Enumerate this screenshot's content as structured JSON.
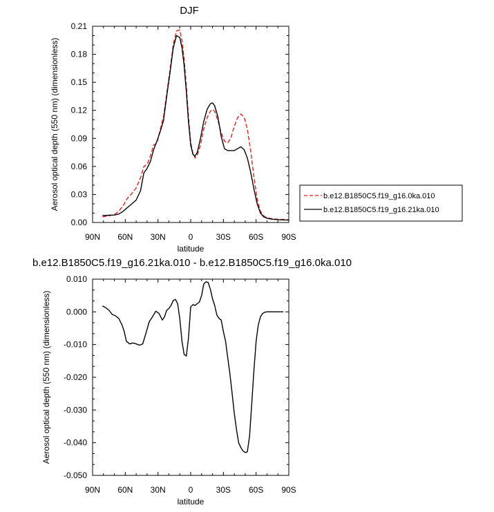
{
  "chart_data": [
    {
      "type": "line",
      "title": "DJF",
      "xlabel": "latitude",
      "ylabel": "Aerosol optical depth (550 nm) (dimensionless)",
      "xlim": [
        90,
        -90
      ],
      "ylim": [
        0,
        0.21
      ],
      "x_ticks": [
        "90N",
        "60N",
        "30N",
        "0",
        "30S",
        "60S",
        "90S"
      ],
      "y_ticks": [
        "0.00",
        "0.03",
        "0.06",
        "0.09",
        "0.12",
        "0.15",
        "0.18",
        "0.21"
      ],
      "legend_position": "right",
      "series": [
        {
          "name": "b.e12.B1850C5.f19_g16.0ka.010",
          "color": "#e02020",
          "dash": "dashed",
          "x": [
            81,
            75,
            70,
            66,
            62,
            58,
            54,
            50,
            46,
            43,
            40,
            37,
            34,
            31,
            28,
            25,
            22,
            19,
            16,
            13,
            10,
            8,
            6,
            4,
            2,
            0,
            -2,
            -4,
            -6,
            -9,
            -12,
            -15,
            -18,
            -20,
            -22,
            -25,
            -28,
            -31,
            -34,
            -37,
            -40,
            -43,
            -46,
            -49,
            -52,
            -55,
            -58,
            -61,
            -64,
            -67,
            -70,
            -75,
            -80,
            -90
          ],
          "y": [
            0.006,
            0.0072,
            0.0085,
            0.012,
            0.018,
            0.026,
            0.031,
            0.037,
            0.048,
            0.06,
            0.062,
            0.071,
            0.083,
            0.085,
            0.099,
            0.113,
            0.138,
            0.163,
            0.191,
            0.205,
            0.206,
            0.195,
            0.175,
            0.146,
            0.113,
            0.086,
            0.074,
            0.069,
            0.072,
            0.083,
            0.1,
            0.112,
            0.119,
            0.121,
            0.119,
            0.109,
            0.096,
            0.087,
            0.085,
            0.091,
            0.103,
            0.112,
            0.116,
            0.113,
            0.1,
            0.077,
            0.049,
            0.025,
            0.012,
            0.007,
            0.005,
            0.004,
            0.0035,
            0.003
          ]
        },
        {
          "name": "b.e12.B1850C5.f19_g16.21ka.010",
          "color": "#000000",
          "dash": "solid",
          "x": [
            81,
            75,
            70,
            66,
            62,
            58,
            54,
            50,
            46,
            43,
            40,
            37,
            34,
            31,
            28,
            25,
            22,
            19,
            16,
            13,
            10,
            8,
            6,
            4,
            2,
            0,
            -2,
            -4,
            -6,
            -9,
            -12,
            -15,
            -18,
            -20,
            -22,
            -25,
            -28,
            -31,
            -34,
            -37,
            -40,
            -43,
            -46,
            -49,
            -52,
            -55,
            -58,
            -61,
            -64,
            -67,
            -70,
            -75,
            -80,
            -90
          ],
          "y": [
            0.0075,
            0.0078,
            0.008,
            0.009,
            0.012,
            0.016,
            0.02,
            0.024,
            0.034,
            0.053,
            0.058,
            0.065,
            0.078,
            0.087,
            0.097,
            0.109,
            0.135,
            0.16,
            0.187,
            0.2,
            0.198,
            0.187,
            0.168,
            0.14,
            0.108,
            0.083,
            0.073,
            0.071,
            0.075,
            0.09,
            0.108,
            0.121,
            0.127,
            0.128,
            0.125,
            0.113,
            0.092,
            0.079,
            0.077,
            0.077,
            0.077,
            0.079,
            0.081,
            0.078,
            0.069,
            0.054,
            0.036,
            0.02,
            0.01,
            0.006,
            0.0045,
            0.0035,
            0.003,
            0.0025
          ]
        }
      ]
    },
    {
      "type": "line",
      "title": "b.e12.B1850C5.f19_g16.21ka.010 - b.e12.B1850C5.f19_g16.0ka.010",
      "xlabel": "latitude",
      "ylabel": "Aerosol optical depth (550 nm) (dimensionless)",
      "xlim": [
        90,
        -90
      ],
      "ylim": [
        -0.05,
        0.01
      ],
      "x_ticks": [
        "90N",
        "60N",
        "30N",
        "0",
        "30S",
        "60S",
        "90S"
      ],
      "y_ticks": [
        "-0.050",
        "-0.040",
        "-0.030",
        "-0.020",
        "-0.010",
        "0.000",
        "0.010"
      ],
      "series": [
        {
          "color": "#000000",
          "dash": "solid",
          "x": [
            81,
            78,
            75,
            72,
            69,
            66,
            63,
            61,
            59,
            56,
            53,
            50,
            47,
            44,
            41,
            38,
            35,
            32,
            29,
            26,
            24,
            22,
            20,
            18,
            16,
            14,
            12,
            10,
            8,
            6,
            4,
            2,
            0,
            -2,
            -4,
            -6,
            -8,
            -10,
            -12,
            -14,
            -16,
            -18,
            -20,
            -22,
            -24,
            -26,
            -28,
            -30,
            -32,
            -34,
            -36,
            -38,
            -40,
            -42,
            -44,
            -46,
            -48,
            -50,
            -52,
            -54,
            -56,
            -58,
            -60,
            -62,
            -64,
            -66,
            -68,
            -70,
            -74,
            -78,
            -85
          ],
          "y": [
            0.0018,
            0.0013,
            0.0005,
            -0.0008,
            -0.0012,
            -0.002,
            -0.004,
            -0.006,
            -0.009,
            -0.0098,
            -0.0095,
            -0.0098,
            -0.0102,
            -0.0098,
            -0.0065,
            -0.003,
            -0.0015,
            0.0002,
            -0.0005,
            -0.0025,
            -0.0015,
            0.0005,
            0.001,
            0.002,
            0.0035,
            0.0038,
            0.0025,
            -0.002,
            -0.009,
            -0.013,
            -0.0135,
            -0.008,
            0.0015,
            0.0022,
            0.002,
            0.0025,
            0.003,
            0.005,
            0.0085,
            0.0092,
            0.009,
            0.007,
            0.004,
            0.002,
            -0.001,
            -0.002,
            -0.0025,
            -0.006,
            -0.009,
            -0.014,
            -0.019,
            -0.025,
            -0.031,
            -0.036,
            -0.04,
            -0.0415,
            -0.0425,
            -0.043,
            -0.0428,
            -0.038,
            -0.028,
            -0.018,
            -0.009,
            -0.004,
            -0.0015,
            -0.0005,
            -0.0001,
            0.0,
            0.0,
            0.0,
            0.0
          ]
        }
      ]
    }
  ]
}
